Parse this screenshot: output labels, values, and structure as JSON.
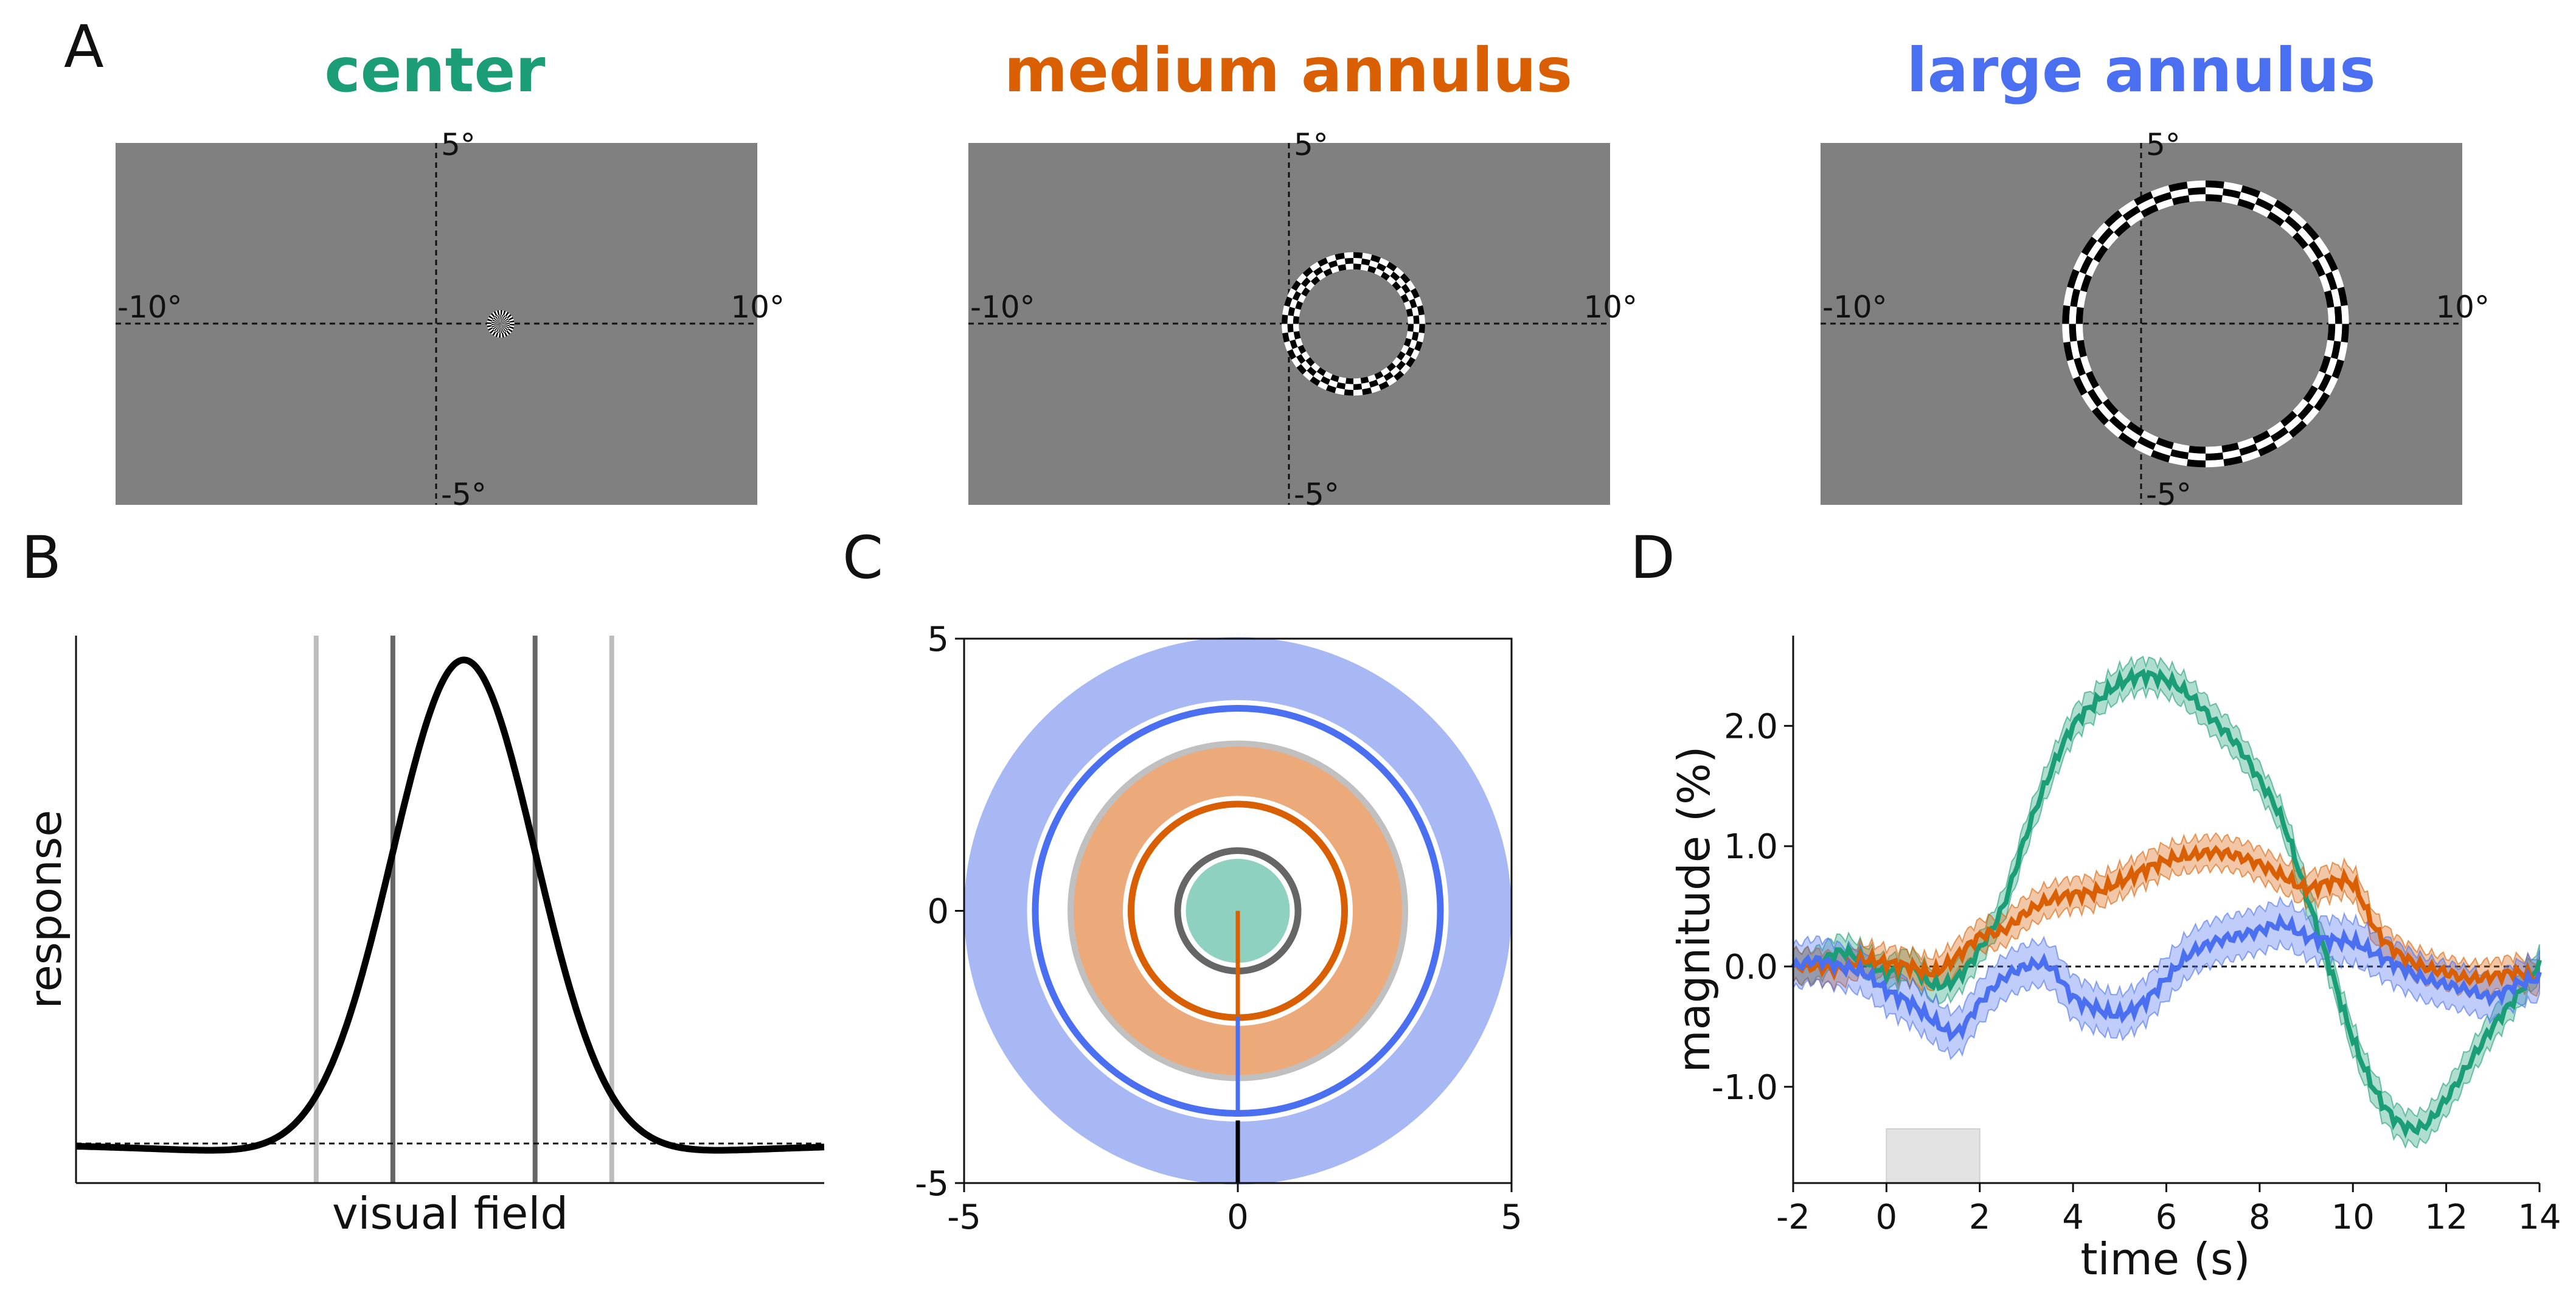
{
  "panels": {
    "A": {
      "label": "A",
      "stimuli": [
        {
          "name": "center",
          "color": "#1b9e77",
          "inner_radius_deg": 0.0,
          "outer_radius_deg": 0.4
        },
        {
          "name": "medium annulus",
          "color": "#d95f02",
          "inner_radius_deg": 1.6,
          "outer_radius_deg": 2.1
        },
        {
          "name": "large annulus",
          "color": "#4a6ff0",
          "inner_radius_deg": 3.6,
          "outer_radius_deg": 4.2
        }
      ],
      "field": {
        "x_range_deg": [
          -10,
          10
        ],
        "y_range_deg": [
          -5,
          5
        ],
        "center_offset_deg": [
          2,
          0
        ]
      },
      "axis_labels": {
        "top": "5°",
        "bottom": "-5°",
        "left": "-10°",
        "right": "10°"
      }
    },
    "B": {
      "label": "B",
      "xlabel": "visual field",
      "ylabel": "response"
    },
    "C": {
      "label": "C",
      "ticks": [
        "-5",
        "0",
        "5"
      ]
    },
    "D": {
      "label": "D",
      "xlabel": "time (s)",
      "ylabel": "magnitude (%)"
    }
  },
  "chart_data": [
    {
      "panel": "B",
      "type": "line",
      "curve": "difference-of-gaussians",
      "center_x": 0.0,
      "vertical_markers_dark": [
        -0.77,
        0.77
      ],
      "vertical_markers_light": [
        -1.6,
        1.6
      ]
    },
    {
      "panel": "C",
      "type": "area",
      "xlim": [
        -5,
        5
      ],
      "ylim": [
        -5,
        5
      ],
      "xticks": [
        -5,
        0,
        5
      ],
      "yticks": [
        -5,
        0,
        5
      ],
      "rings": [
        {
          "kind": "disk",
          "color": "#8ed1c0",
          "r_outer": 0.95
        },
        {
          "kind": "ring",
          "color": "#666666",
          "r": 1.1
        },
        {
          "kind": "ring",
          "color": "#d95f02",
          "r": 1.95
        },
        {
          "kind": "annulus",
          "color": "#eca97a",
          "r_inner": 2.1,
          "r_outer": 3.0
        },
        {
          "kind": "ring",
          "color": "#c0c0c0",
          "r": 3.05
        },
        {
          "kind": "ring",
          "color": "#4a6ff0",
          "r": 3.7
        },
        {
          "kind": "annulus",
          "color": "#a7b8f5",
          "r_inner": 3.85,
          "r_outer": 5.0
        }
      ],
      "radial_lines": [
        {
          "color": "#d95f02",
          "y_from": 0,
          "y_to": -1.95
        },
        {
          "color": "#4a6ff0",
          "y_from": -1.95,
          "y_to": -3.7
        },
        {
          "color": "#000000",
          "y_from": -3.85,
          "y_to": -5.0
        }
      ]
    },
    {
      "panel": "D",
      "type": "line",
      "xlim": [
        -2,
        14
      ],
      "ylim": [
        -1.8,
        2.75
      ],
      "xticks": [
        -2,
        0,
        2,
        4,
        6,
        8,
        10,
        12,
        14
      ],
      "yticks": [
        -1.0,
        0.0,
        1.0,
        2.0
      ],
      "ytick_labels": [
        "-1.0",
        "0.0",
        "1.0",
        "2.0"
      ],
      "stimulus_period": [
        0,
        2
      ],
      "x": [
        -2,
        -1.5,
        -1,
        -0.5,
        0,
        0.5,
        1,
        1.5,
        2,
        2.5,
        3,
        3.5,
        4,
        4.5,
        5,
        5.5,
        6,
        6.5,
        7,
        7.5,
        8,
        8.5,
        9,
        9.5,
        10,
        10.5,
        11,
        11.5,
        12,
        12.5,
        13,
        13.5,
        14
      ],
      "series": [
        {
          "color": "#1b9e77",
          "band": 0.13,
          "values": [
            0.0,
            0.02,
            0.12,
            0.05,
            -0.05,
            0.0,
            -0.15,
            -0.1,
            0.15,
            0.5,
            1.1,
            1.6,
            2.0,
            2.2,
            2.35,
            2.42,
            2.38,
            2.25,
            2.05,
            1.85,
            1.55,
            1.2,
            0.6,
            0.0,
            -0.6,
            -1.05,
            -1.3,
            -1.33,
            -1.1,
            -0.8,
            -0.5,
            -0.25,
            0.0
          ]
        },
        {
          "color": "#d95f02",
          "band": 0.13,
          "values": [
            0.0,
            0.0,
            -0.02,
            0.05,
            0.03,
            0.0,
            -0.05,
            0.08,
            0.25,
            0.3,
            0.45,
            0.55,
            0.6,
            0.62,
            0.7,
            0.8,
            0.88,
            0.92,
            0.95,
            0.92,
            0.85,
            0.75,
            0.65,
            0.7,
            0.68,
            0.3,
            0.1,
            0.0,
            -0.05,
            -0.1,
            -0.08,
            -0.05,
            -0.1
          ]
        },
        {
          "color": "#4a6ff0",
          "band": 0.18,
          "values": [
            0.0,
            0.05,
            0.0,
            -0.05,
            -0.2,
            -0.3,
            -0.45,
            -0.55,
            -0.3,
            -0.1,
            0.0,
            0.0,
            -0.25,
            -0.35,
            -0.4,
            -0.3,
            -0.1,
            0.1,
            0.2,
            0.25,
            0.3,
            0.35,
            0.25,
            0.22,
            0.2,
            0.1,
            0.0,
            -0.1,
            -0.15,
            -0.2,
            -0.25,
            -0.15,
            -0.1
          ]
        }
      ]
    }
  ]
}
